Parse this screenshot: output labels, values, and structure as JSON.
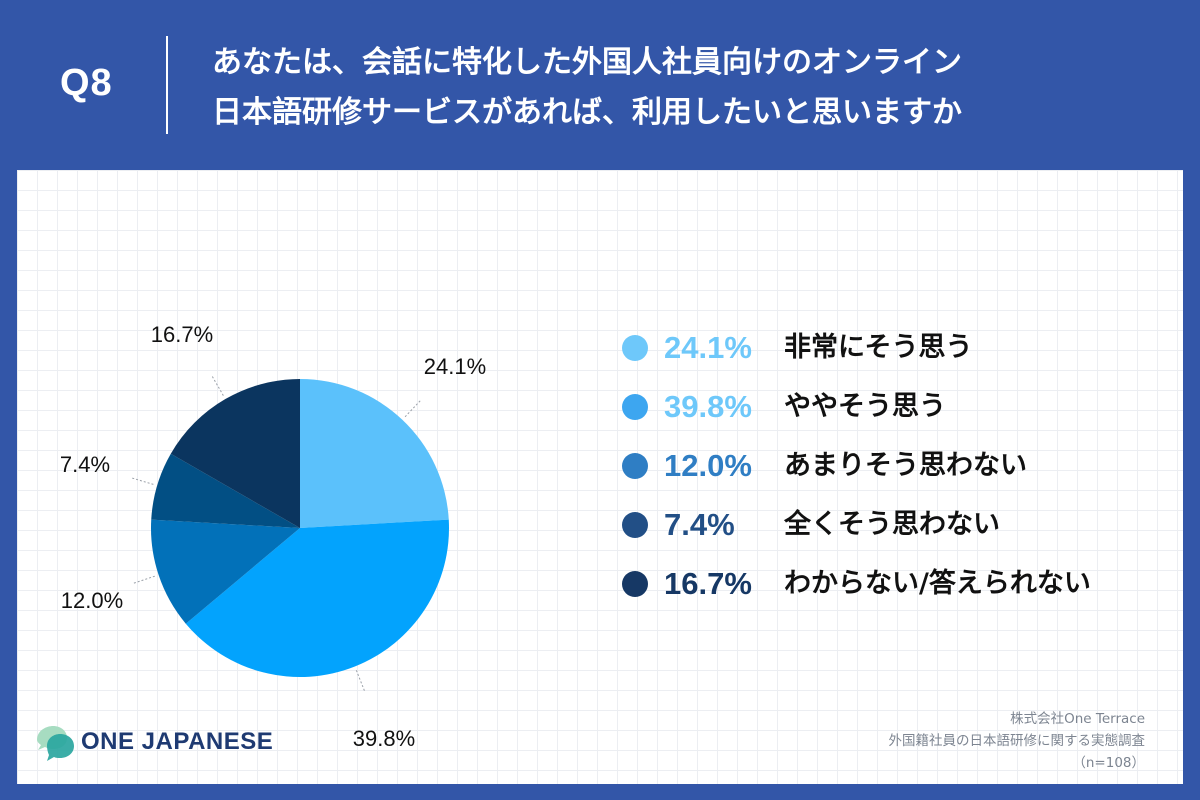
{
  "header": {
    "question_label": "Q8",
    "title_line1": "あなたは、会話に特化した外国人社員向けのオンライン",
    "title_line2": "日本語研修サービスがあれば、利用したいと思いますか"
  },
  "chart_data": {
    "type": "pie",
    "title": "",
    "categories": [
      "非常にそう思う",
      "ややそう思う",
      "あまりそう思わない",
      "全くそう思わない",
      "わからない/答えられない"
    ],
    "values": [
      24.1,
      39.8,
      12.0,
      7.4,
      16.7
    ],
    "labels": [
      "24.1%",
      "39.8%",
      "12.0%",
      "7.4%",
      "16.7%"
    ],
    "colors": [
      "#5bc1fb",
      "#03a3fd",
      "#0271b9",
      "#024f84",
      "#0b355f"
    ],
    "legend_colors": [
      "#6ec8fa",
      "#3da6f0",
      "#2f7ec4",
      "#224f86",
      "#163865"
    ],
    "legend_pct_colors": [
      "#6ec8fa",
      "#6ec8fa",
      "#2f7ec4",
      "#224f86",
      "#163865"
    ],
    "start_angle": "12 o'clock",
    "direction": "clockwise",
    "legend_placement": "right"
  },
  "footer": {
    "logo_text": "ONE JAPANESE",
    "source_company": "株式会社One Terrace",
    "source_survey": "外国籍社員の日本語研修に関する実態調査",
    "sample_size": "（n=108）"
  }
}
